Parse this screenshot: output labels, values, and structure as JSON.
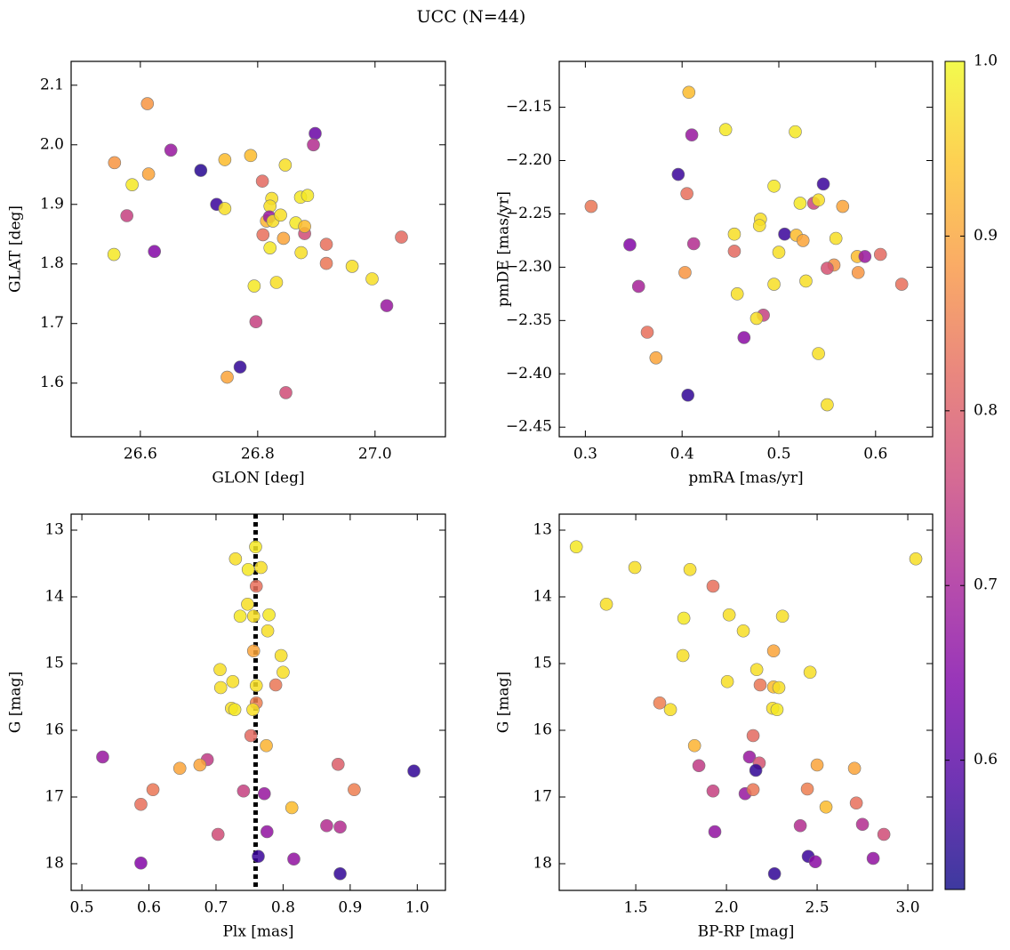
{
  "title": "UCC (N=44)",
  "colorbar": {
    "colormap": "plasma",
    "clim": [
      0.526,
      1.0
    ],
    "ticks": [
      0.6,
      0.7,
      0.8,
      0.9,
      {
        "value": 1,
        "label": "1.0"
      }
    ]
  },
  "chart_data": [
    {
      "type": "scatter",
      "xlabel": "GLON [deg]",
      "ylabel": "GLAT [deg]",
      "xlim": [
        26.482,
        27.12
      ],
      "ylim": [
        1.51,
        2.14
      ],
      "xticks": [
        26.6,
        26.8,
        {
          "value": 27,
          "label": "27.0"
        }
      ],
      "yticks": [
        1.6,
        1.7,
        1.8,
        1.9,
        {
          "value": 2,
          "label": "2.0"
        },
        2.1
      ],
      "x": [
        26.612,
        26.556,
        26.586,
        26.614,
        26.652,
        26.577,
        26.555,
        26.624,
        26.703,
        26.73,
        26.744,
        26.744,
        26.788,
        26.808,
        26.847,
        26.898,
        26.895,
        26.824,
        26.821,
        26.815,
        26.82,
        26.826,
        26.839,
        26.809,
        26.844,
        26.865,
        26.873,
        26.885,
        26.88,
        26.88,
        26.821,
        26.874,
        26.917,
        26.917,
        26.961,
        26.995,
        27.045,
        27.02,
        26.794,
        26.832,
        26.797,
        26.748,
        26.77,
        26.848
      ],
      "values": [
        2.069,
        1.97,
        1.933,
        1.951,
        1.991,
        1.881,
        1.816,
        1.821,
        1.957,
        1.9,
        1.893,
        1.975,
        1.982,
        1.939,
        1.966,
        2.019,
        2.0,
        1.91,
        1.897,
        1.872,
        1.879,
        1.872,
        1.882,
        1.849,
        1.843,
        1.869,
        1.912,
        1.915,
        1.851,
        1.863,
        1.827,
        1.819,
        1.833,
        1.801,
        1.796,
        1.775,
        1.845,
        1.73,
        1.763,
        1.769,
        1.703,
        1.61,
        1.627,
        1.584
      ],
      "color_values": [
        0.88,
        0.88,
        0.98,
        0.9,
        0.68,
        0.75,
        0.98,
        0.65,
        0.55,
        0.57,
        0.97,
        0.93,
        0.93,
        0.82,
        0.97,
        0.62,
        0.72,
        0.97,
        0.97,
        0.92,
        0.68,
        0.97,
        0.97,
        0.83,
        0.9,
        0.98,
        0.98,
        0.98,
        0.77,
        0.93,
        0.98,
        0.97,
        0.83,
        0.84,
        0.97,
        0.97,
        0.82,
        0.68,
        0.98,
        0.97,
        0.75,
        0.9,
        0.56,
        0.77
      ]
    },
    {
      "type": "scatter",
      "xlabel": "pmRA [mas/yr]",
      "ylabel": "pmDE [mas/yr]",
      "xlim": [
        0.273,
        0.659
      ],
      "ylim": [
        -2.459,
        -2.107
      ],
      "xticks": [
        0.3,
        0.4,
        0.5,
        0.6
      ],
      "yticks": [
        {
          "value": -2.45,
          "label": "−2.45"
        },
        {
          "value": -2.4,
          "label": "−2.40"
        },
        {
          "value": -2.35,
          "label": "−2.35"
        },
        {
          "value": -2.3,
          "label": "−2.30"
        },
        {
          "value": -2.25,
          "label": "−2.25"
        },
        {
          "value": -2.2,
          "label": "−2.20"
        },
        {
          "value": -2.15,
          "label": "−2.15"
        }
      ],
      "x": [
        0.407,
        0.41,
        0.445,
        0.517,
        0.396,
        0.405,
        0.306,
        0.546,
        0.495,
        0.522,
        0.536,
        0.541,
        0.566,
        0.481,
        0.48,
        0.454,
        0.506,
        0.518,
        0.525,
        0.559,
        0.346,
        0.412,
        0.454,
        0.5,
        0.581,
        0.589,
        0.605,
        0.557,
        0.55,
        0.403,
        0.582,
        0.627,
        0.355,
        0.495,
        0.528,
        0.457,
        0.484,
        0.477,
        0.364,
        0.464,
        0.373,
        0.541,
        0.406,
        0.55
      ],
      "values": [
        -2.136,
        -2.176,
        -2.171,
        -2.173,
        -2.213,
        -2.231,
        -2.243,
        -2.222,
        -2.224,
        -2.24,
        -2.24,
        -2.237,
        -2.243,
        -2.255,
        -2.261,
        -2.269,
        -2.269,
        -2.27,
        -2.275,
        -2.273,
        -2.279,
        -2.278,
        -2.285,
        -2.286,
        -2.29,
        -2.29,
        -2.288,
        -2.298,
        -2.301,
        -2.305,
        -2.305,
        -2.316,
        -2.318,
        -2.316,
        -2.313,
        -2.325,
        -2.345,
        -2.348,
        -2.361,
        -2.366,
        -2.385,
        -2.381,
        -2.42,
        -2.429
      ],
      "color_values": [
        0.93,
        0.68,
        0.98,
        0.98,
        0.57,
        0.83,
        0.84,
        0.57,
        0.98,
        0.98,
        0.76,
        0.97,
        0.9,
        0.97,
        0.97,
        0.97,
        0.57,
        0.93,
        0.9,
        0.97,
        0.65,
        0.72,
        0.82,
        0.97,
        0.93,
        0.68,
        0.82,
        0.88,
        0.78,
        0.88,
        0.88,
        0.83,
        0.7,
        0.97,
        0.97,
        0.97,
        0.75,
        0.97,
        0.83,
        0.66,
        0.9,
        0.97,
        0.56,
        0.97
      ]
    },
    {
      "type": "scatter",
      "xlabel": "Plx [mas]",
      "ylabel": "G [mag]",
      "xlim": [
        0.484,
        1.042
      ],
      "ylim": [
        18.4,
        12.76
      ],
      "vline": 0.759,
      "xticks": [
        0.5,
        0.6,
        0.7,
        0.8,
        0.9,
        {
          "value": 1,
          "label": "1.0"
        }
      ],
      "yticks": [
        13,
        14,
        15,
        16,
        17,
        18
      ],
      "x": [
        0.759,
        0.729,
        0.748,
        0.767,
        0.76,
        0.747,
        0.736,
        0.756,
        0.779,
        0.777,
        0.756,
        0.797,
        0.706,
        0.8,
        0.725,
        0.707,
        0.76,
        0.789,
        0.76,
        0.723,
        0.728,
        0.755,
        0.752,
        0.775,
        0.531,
        0.687,
        0.676,
        0.646,
        0.882,
        0.995,
        0.606,
        0.741,
        0.772,
        0.906,
        0.588,
        0.813,
        0.865,
        0.885,
        0.703,
        0.776,
        0.763,
        0.816,
        0.588,
        0.885
      ],
      "values": [
        13.25,
        13.43,
        13.59,
        13.56,
        13.84,
        14.11,
        14.29,
        14.29,
        14.27,
        14.51,
        14.81,
        14.88,
        15.09,
        15.13,
        15.27,
        15.36,
        15.33,
        15.32,
        15.59,
        15.67,
        15.69,
        15.69,
        16.08,
        16.23,
        16.4,
        16.44,
        16.52,
        16.57,
        16.51,
        16.61,
        16.89,
        16.91,
        16.95,
        16.89,
        17.11,
        17.16,
        17.43,
        17.45,
        17.56,
        17.52,
        17.89,
        17.93,
        17.99,
        18.15
      ],
      "color_values": [
        0.98,
        0.97,
        0.98,
        0.97,
        0.83,
        0.97,
        0.98,
        0.97,
        0.98,
        0.97,
        0.9,
        0.97,
        0.97,
        0.97,
        0.97,
        0.97,
        0.97,
        0.84,
        0.85,
        0.97,
        0.98,
        0.97,
        0.82,
        0.92,
        0.68,
        0.74,
        0.9,
        0.9,
        0.8,
        0.56,
        0.84,
        0.75,
        0.68,
        0.85,
        0.83,
        0.93,
        0.72,
        0.72,
        0.77,
        0.67,
        0.57,
        0.67,
        0.65,
        0.56
      ]
    },
    {
      "type": "scatter",
      "xlabel": "BP-RP [mag]",
      "ylabel": "G [mag]",
      "xlim": [
        1.078,
        3.137
      ],
      "ylim": [
        18.4,
        12.76
      ],
      "xticks": [
        1.5,
        {
          "value": 2,
          "label": "2.0"
        },
        2.5,
        {
          "value": 3,
          "label": "3.0"
        }
      ],
      "yticks": [
        13,
        14,
        15,
        16,
        17,
        18
      ],
      "x": [
        1.172,
        3.044,
        1.495,
        1.799,
        1.926,
        1.338,
        1.765,
        2.015,
        2.309,
        2.093,
        2.26,
        1.76,
        2.167,
        2.461,
        2.005,
        2.186,
        2.26,
        2.289,
        1.632,
        1.691,
        2.255,
        2.279,
        2.147,
        1.824,
        2.127,
        1.848,
        2.181,
        2.162,
        2.5,
        2.706,
        1.926,
        2.103,
        2.147,
        2.446,
        2.549,
        2.716,
        2.407,
        2.75,
        2.868,
        1.936,
        2.451,
        2.49,
        2.809,
        2.265
      ],
      "values": [
        13.25,
        13.43,
        13.56,
        13.59,
        13.84,
        14.11,
        14.32,
        14.27,
        14.29,
        14.51,
        14.81,
        14.88,
        15.09,
        15.13,
        15.27,
        15.32,
        15.35,
        15.36,
        15.59,
        15.69,
        15.67,
        15.69,
        16.08,
        16.23,
        16.4,
        16.53,
        16.49,
        16.6,
        16.52,
        16.57,
        16.91,
        16.95,
        16.89,
        16.88,
        17.15,
        17.09,
        17.43,
        17.41,
        17.56,
        17.52,
        17.89,
        17.97,
        17.92,
        18.15
      ],
      "color_values": [
        0.98,
        0.97,
        0.97,
        0.97,
        0.83,
        0.97,
        0.98,
        0.97,
        0.97,
        0.97,
        0.9,
        0.97,
        0.97,
        0.97,
        0.97,
        0.84,
        0.93,
        0.97,
        0.85,
        0.97,
        0.97,
        0.98,
        0.82,
        0.92,
        0.68,
        0.74,
        0.78,
        0.56,
        0.9,
        0.9,
        0.75,
        0.68,
        0.84,
        0.85,
        0.93,
        0.83,
        0.72,
        0.72,
        0.77,
        0.67,
        0.57,
        0.66,
        0.67,
        0.56
      ]
    }
  ]
}
